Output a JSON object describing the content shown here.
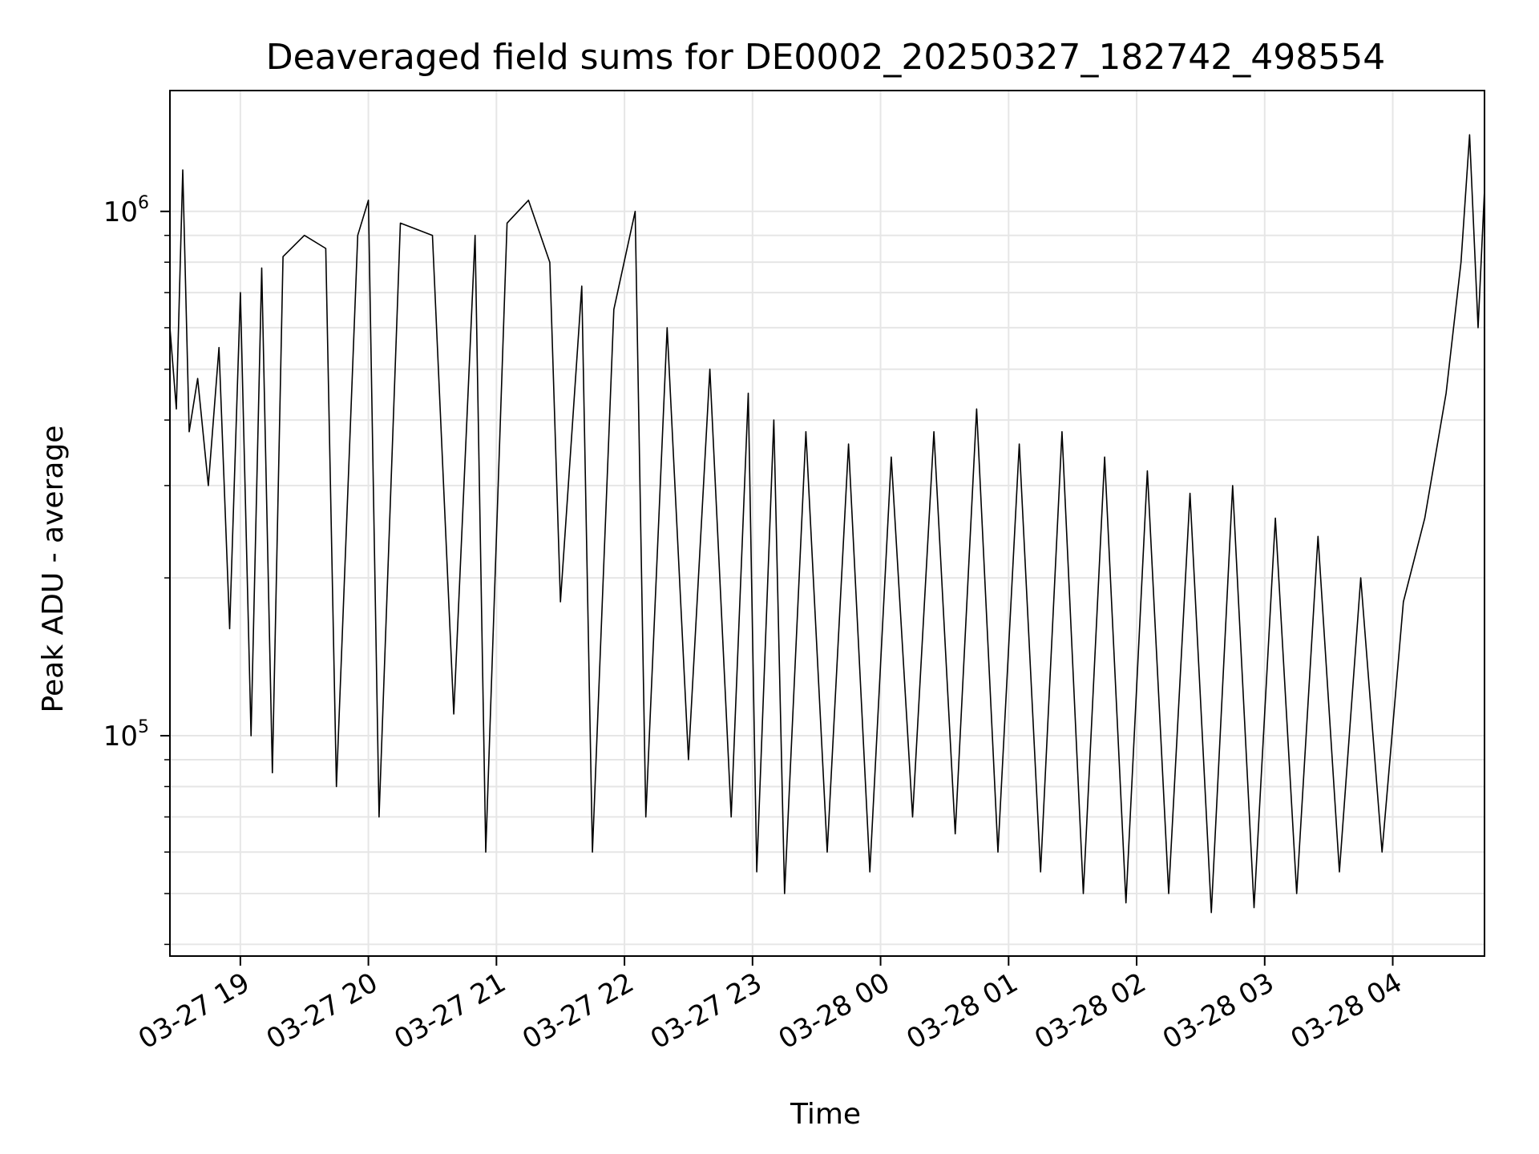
{
  "chart_data": {
    "type": "line",
    "title": "Deaveraged field sums for DE0002_20250327_182742_498554",
    "xlabel": "Time",
    "ylabel": "Peak ADU - average",
    "yscale": "log",
    "grid": true,
    "line_color": "#000000",
    "grid_color": "#e6e6e6",
    "x_range": [
      "03-27 18:27",
      "03-28 04:43"
    ],
    "ylim": [
      38000,
      1700000
    ],
    "x_ticks": [
      "03-27 19",
      "03-27 20",
      "03-27 21",
      "03-27 22",
      "03-27 23",
      "03-28 00",
      "03-28 01",
      "03-28 02",
      "03-28 03",
      "03-28 04"
    ],
    "y_ticks": [
      {
        "base": "10",
        "exp": "5",
        "value": 100000
      },
      {
        "base": "10",
        "exp": "6",
        "value": 1000000
      }
    ],
    "series": [
      {
        "points": [
          [
            "03-27 18:27",
            600000
          ],
          [
            "03-27 18:30",
            420000
          ],
          [
            "03-27 18:33",
            1200000
          ],
          [
            "03-27 18:36",
            380000
          ],
          [
            "03-27 18:40",
            480000
          ],
          [
            "03-27 18:45",
            300000
          ],
          [
            "03-27 18:50",
            550000
          ],
          [
            "03-27 18:55",
            160000
          ],
          [
            "03-27 19:00",
            700000
          ],
          [
            "03-27 19:05",
            100000
          ],
          [
            "03-27 19:10",
            780000
          ],
          [
            "03-27 19:15",
            85000
          ],
          [
            "03-27 19:20",
            820000
          ],
          [
            "03-27 19:30",
            900000
          ],
          [
            "03-27 19:40",
            850000
          ],
          [
            "03-27 19:45",
            80000
          ],
          [
            "03-27 19:55",
            900000
          ],
          [
            "03-27 20:00",
            1050000
          ],
          [
            "03-27 20:05",
            70000
          ],
          [
            "03-27 20:15",
            950000
          ],
          [
            "03-27 20:30",
            900000
          ],
          [
            "03-27 20:40",
            110000
          ],
          [
            "03-27 20:50",
            900000
          ],
          [
            "03-27 20:55",
            60000
          ],
          [
            "03-27 21:05",
            950000
          ],
          [
            "03-27 21:15",
            1050000
          ],
          [
            "03-27 21:25",
            800000
          ],
          [
            "03-27 21:30",
            180000
          ],
          [
            "03-27 21:40",
            720000
          ],
          [
            "03-27 21:45",
            60000
          ],
          [
            "03-27 21:55",
            650000
          ],
          [
            "03-27 22:05",
            1000000
          ],
          [
            "03-27 22:10",
            70000
          ],
          [
            "03-27 22:20",
            600000
          ],
          [
            "03-27 22:30",
            90000
          ],
          [
            "03-27 22:40",
            500000
          ],
          [
            "03-27 22:50",
            70000
          ],
          [
            "03-27 22:58",
            450000
          ],
          [
            "03-27 23:02",
            55000
          ],
          [
            "03-27 23:10",
            400000
          ],
          [
            "03-27 23:15",
            50000
          ],
          [
            "03-27 23:25",
            380000
          ],
          [
            "03-27 23:35",
            60000
          ],
          [
            "03-27 23:45",
            360000
          ],
          [
            "03-27 23:55",
            55000
          ],
          [
            "03-28 00:05",
            340000
          ],
          [
            "03-28 00:15",
            70000
          ],
          [
            "03-28 00:25",
            380000
          ],
          [
            "03-28 00:35",
            65000
          ],
          [
            "03-28 00:45",
            420000
          ],
          [
            "03-28 00:55",
            60000
          ],
          [
            "03-28 01:05",
            360000
          ],
          [
            "03-28 01:15",
            55000
          ],
          [
            "03-28 01:25",
            380000
          ],
          [
            "03-28 01:35",
            50000
          ],
          [
            "03-28 01:45",
            340000
          ],
          [
            "03-28 01:55",
            48000
          ],
          [
            "03-28 02:05",
            320000
          ],
          [
            "03-28 02:15",
            50000
          ],
          [
            "03-28 02:25",
            290000
          ],
          [
            "03-28 02:35",
            46000
          ],
          [
            "03-28 02:45",
            300000
          ],
          [
            "03-28 02:55",
            47000
          ],
          [
            "03-28 03:05",
            260000
          ],
          [
            "03-28 03:15",
            50000
          ],
          [
            "03-28 03:25",
            240000
          ],
          [
            "03-28 03:35",
            55000
          ],
          [
            "03-28 03:45",
            200000
          ],
          [
            "03-28 03:55",
            60000
          ],
          [
            "03-28 04:05",
            180000
          ],
          [
            "03-28 04:15",
            260000
          ],
          [
            "03-28 04:25",
            450000
          ],
          [
            "03-28 04:32",
            800000
          ],
          [
            "03-28 04:36",
            1400000
          ],
          [
            "03-28 04:40",
            600000
          ],
          [
            "03-28 04:43",
            1100000
          ]
        ]
      }
    ]
  }
}
